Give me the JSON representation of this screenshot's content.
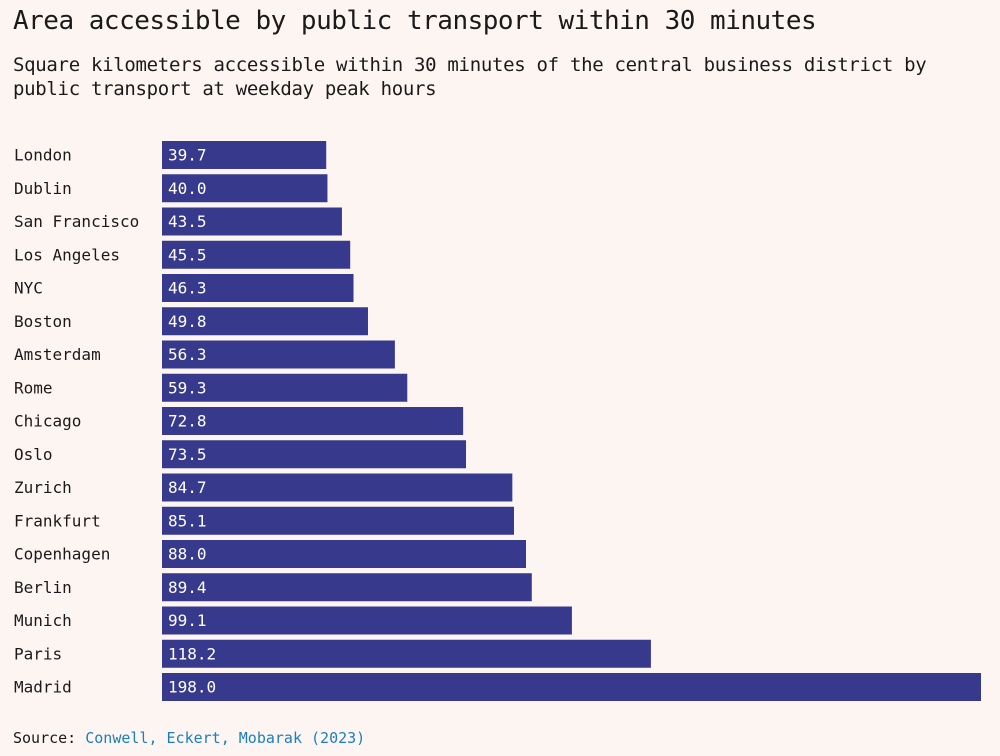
{
  "title": "Area accessible by public transport within 30 minutes",
  "subtitle": "Square kilometers accessible within 30 minutes of the central business district by public transport at weekday peak hours",
  "source": {
    "label": "Source:",
    "link_text": "Conwell, Eckert, Mobarak (2023)"
  },
  "colors": {
    "bar": "#373a8c",
    "background": "#fdf5f1",
    "link": "#1a7fc0"
  },
  "chart_data": {
    "type": "bar",
    "orientation": "horizontal",
    "title": "Area accessible by public transport within 30 minutes",
    "subtitle": "Square kilometers accessible within 30 minutes of the central business district by public transport at weekday peak hours",
    "categories": [
      "London",
      "Dublin",
      "San Francisco",
      "Los Angeles",
      "NYC",
      "Boston",
      "Amsterdam",
      "Rome",
      "Chicago",
      "Oslo",
      "Zurich",
      "Frankfurt",
      "Copenhagen",
      "Berlin",
      "Munich",
      "Paris",
      "Madrid"
    ],
    "values": [
      39.7,
      40.0,
      43.5,
      45.5,
      46.3,
      49.8,
      56.3,
      59.3,
      72.8,
      73.5,
      84.7,
      85.1,
      88.0,
      89.4,
      99.1,
      118.2,
      198.0
    ],
    "value_labels": [
      "39.7",
      "40.0",
      "43.5",
      "45.5",
      "46.3",
      "49.8",
      "56.3",
      "59.3",
      "72.8",
      "73.5",
      "84.7",
      "85.1",
      "88.0",
      "89.4",
      "99.1",
      "118.2",
      "198.0"
    ],
    "xlim": [
      0,
      198
    ],
    "grid": false,
    "legend": "none"
  }
}
